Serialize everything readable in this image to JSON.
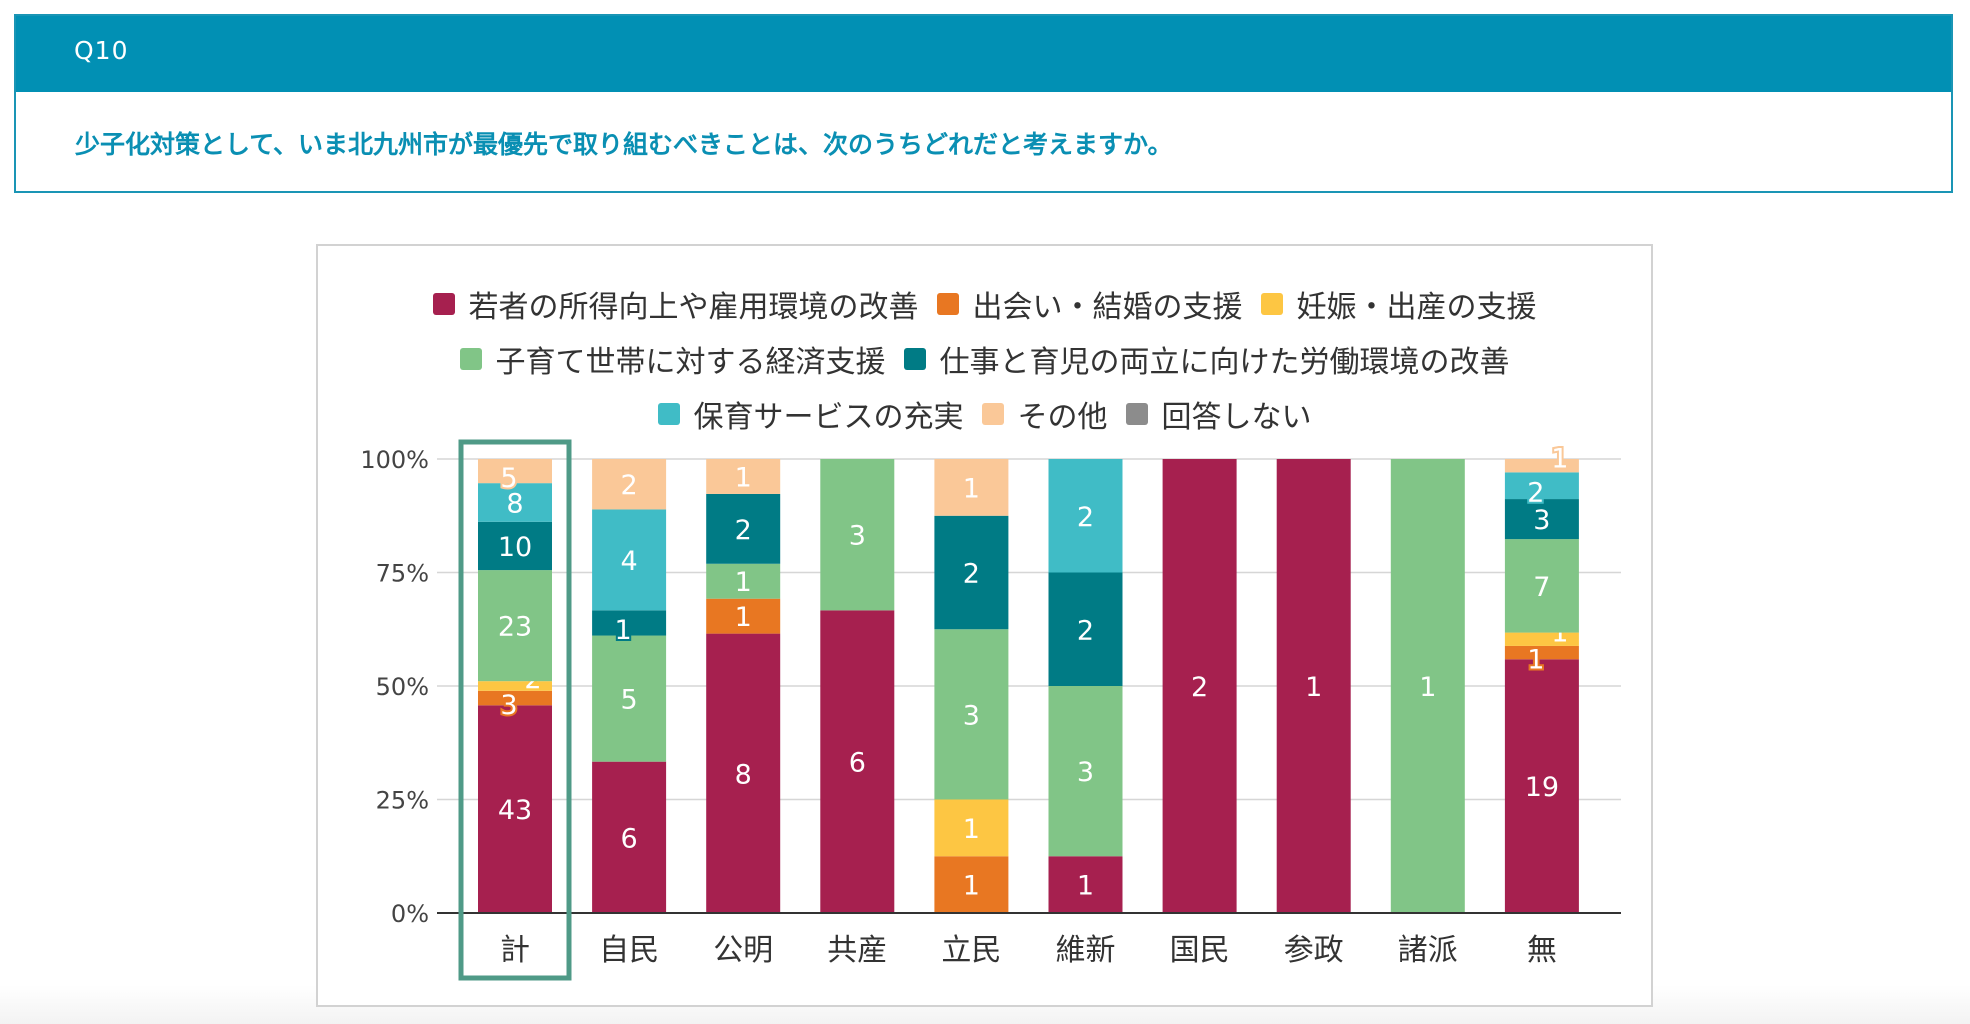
{
  "question": {
    "number": "Q10",
    "text": "少子化対策として、いま北九州市が最優先で取り組むべきことは、次のうちどれだと考えますか。"
  },
  "colors": {
    "header_bg": "#0190b4",
    "question_text": "#0a8fb3",
    "highlight_border": "#4f9a87"
  },
  "chart_data": {
    "type": "bar",
    "stacked": true,
    "normalized": true,
    "title": "",
    "xlabel": "",
    "ylabel": "",
    "ylim": [
      0,
      100
    ],
    "y_ticks": [
      "0%",
      "25%",
      "50%",
      "75%",
      "100%"
    ],
    "grid": true,
    "legend_position": "top",
    "highlighted_category": "計",
    "categories": [
      "計",
      "自民",
      "公明",
      "共産",
      "立民",
      "維新",
      "国民",
      "参政",
      "諸派",
      "無"
    ],
    "series": [
      {
        "name": "若者の所得向上や雇用環境の改善",
        "color": "#a6204f",
        "values": [
          43,
          6,
          8,
          6,
          0,
          1,
          2,
          1,
          0,
          19
        ]
      },
      {
        "name": "出会い・結婚の支援",
        "color": "#e87722",
        "values": [
          3,
          0,
          1,
          0,
          1,
          0,
          0,
          0,
          0,
          1
        ]
      },
      {
        "name": "妊娠・出産の支援",
        "color": "#fdc643",
        "values": [
          2,
          0,
          0,
          0,
          1,
          0,
          0,
          0,
          0,
          1
        ]
      },
      {
        "name": "子育て世帯に対する経済支援",
        "color": "#81c587",
        "values": [
          23,
          5,
          1,
          3,
          3,
          3,
          0,
          0,
          1,
          7
        ]
      },
      {
        "name": "仕事と育児の両立に向けた労働環境の改善",
        "color": "#007b85",
        "values": [
          10,
          1,
          2,
          0,
          2,
          2,
          0,
          0,
          0,
          3
        ]
      },
      {
        "name": "保育サービスの充実",
        "color": "#40bcc6",
        "values": [
          8,
          4,
          0,
          0,
          0,
          2,
          0,
          0,
          0,
          2
        ]
      },
      {
        "name": "その他",
        "color": "#fac898",
        "values": [
          5,
          2,
          1,
          0,
          1,
          0,
          0,
          0,
          0,
          1
        ]
      },
      {
        "name": "回答しない",
        "color": "#8c8c8c",
        "values": [
          0,
          0,
          0,
          0,
          0,
          0,
          0,
          0,
          0,
          0
        ]
      }
    ]
  }
}
